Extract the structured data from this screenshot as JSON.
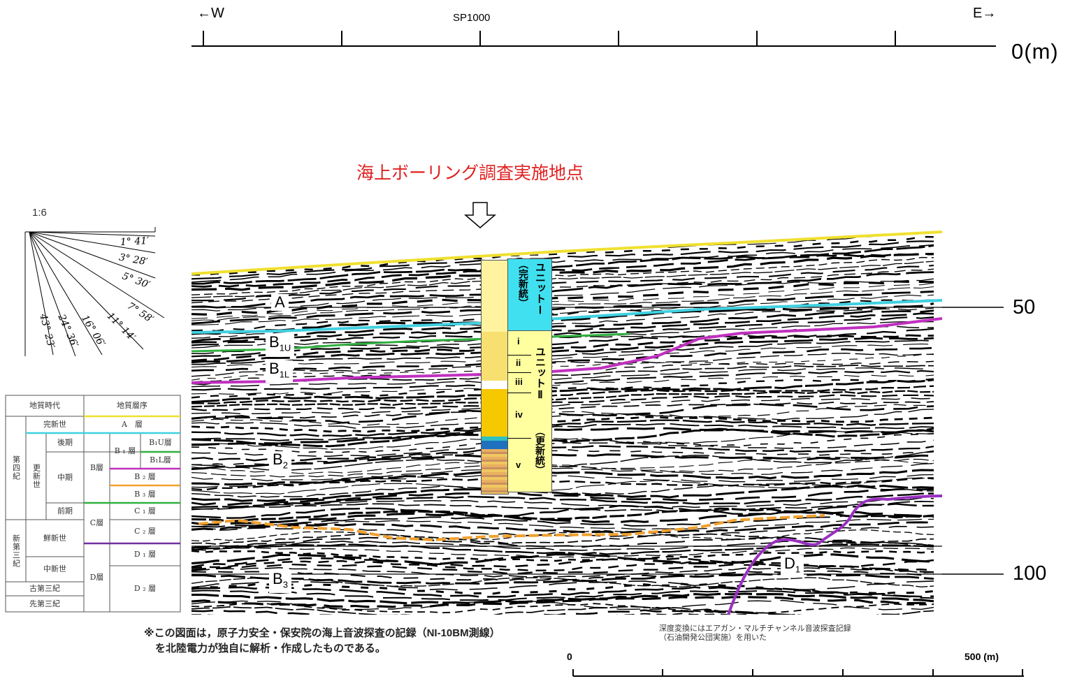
{
  "top_scale": {
    "west": "←W",
    "east": "E→",
    "shotpoint": "SP1000",
    "depth_zero": "0(m)"
  },
  "title": "海上ボーリング調査実施地点",
  "slope": {
    "ratio": "1:6",
    "angles": [
      "1°  41′",
      "3°  28′",
      "5°  30′",
      "7°  58′",
      "11°  14′",
      "16°  06′",
      "24°  36′",
      "43°  23′"
    ]
  },
  "depth_ticks": [
    "50",
    "100"
  ],
  "layers": {
    "A": "A",
    "B1U_main": "B",
    "B1U_sub": "1U",
    "B1L_main": "B",
    "B1L_sub": "1L",
    "B2_main": "B",
    "B2_sub": "2",
    "B3_main": "B",
    "B3_sub": "3",
    "D1_main": "D",
    "D1_sub": "1"
  },
  "units": {
    "unit1": "ユニットⅠ",
    "unit1_age": "（完新統）",
    "unit2": "ユニットⅡ",
    "unit2_age": "（更新統）",
    "subunits": [
      "i",
      "ii",
      "iii",
      "iv",
      "v"
    ]
  },
  "colors": {
    "A": "#f0e030",
    "B1U": "#40d0e0",
    "B1L": "#30b040",
    "B2": "#c030c0",
    "B3": "#f0a030",
    "C": "#7030a0",
    "D": "#9a30c0",
    "title": "#e02020",
    "unit1_bg": "#40e0f0",
    "unit2_bg": "#ffffa0"
  },
  "strat_table": {
    "header_age": "地質時代",
    "header_seq": "地質層序",
    "quaternary": "第四紀",
    "holocene": "完新世",
    "pleistocene": "更新世",
    "late": "後期",
    "middle": "中期",
    "early": "前期",
    "neogene": "新第三紀",
    "pliocene": "鮮新世",
    "miocene": "中新世",
    "paleogene": "古第三紀",
    "pre_tertiary": "先第三紀",
    "A_layer": "A　層",
    "B_layer": "B層",
    "B1_layer": "B ₁ 層",
    "B1U_layer": "B₁U層",
    "B1L_layer": "B₁L層",
    "B2_layer": "B ₂ 層",
    "B3_layer": "B ₃ 層",
    "C_layer": "C層",
    "C1_layer": "C ₁ 層",
    "C2_layer": "C ₂ 層",
    "D_layer": "D層",
    "D1_layer": "D ₁ 層",
    "D2_layer": "D ₂ 層"
  },
  "note": {
    "line1": "※この図面は，原子力安全・保安院の海上音波探査の記録（NI-10BM測線）",
    "line2": "を北陸電力が独自に解析・作成したものである。"
  },
  "depth_note": {
    "line1": "深度変換にはエアガン・マルチチャンネル音波探査記録",
    "line2": "（石油開発公団実施）を用いた"
  },
  "bottom_scale": {
    "zero": "0",
    "max": "500 (m)"
  }
}
